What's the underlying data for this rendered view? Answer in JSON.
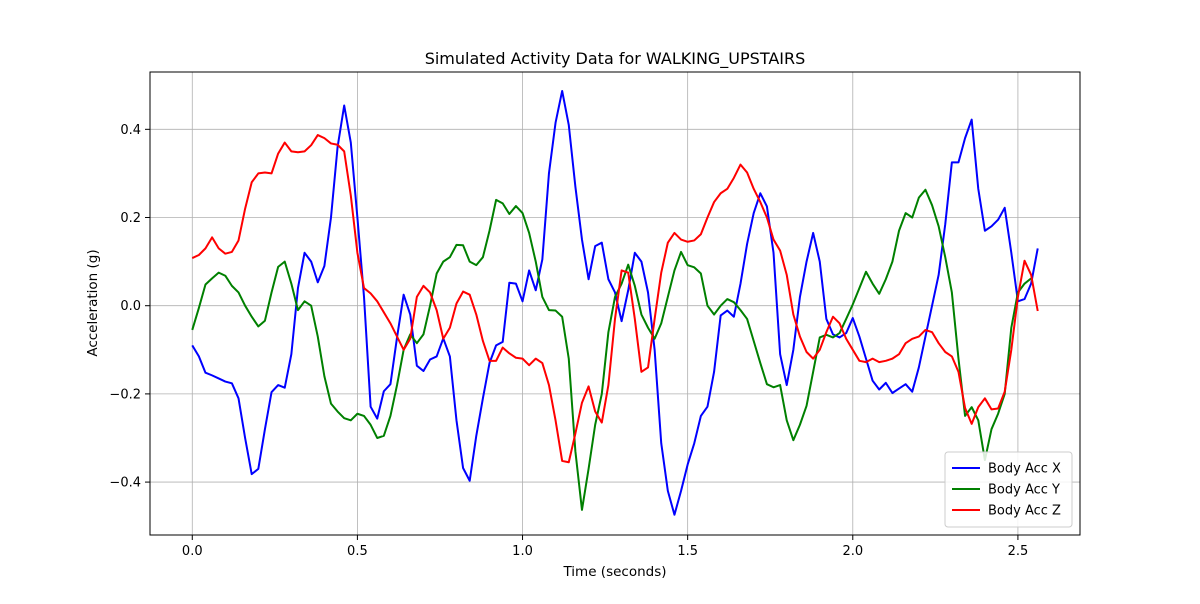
{
  "chart_data": {
    "type": "line",
    "title": "Simulated Activity Data for WALKING_UPSTAIRS",
    "xlabel": "Time (seconds)",
    "ylabel": "Acceleration (g)",
    "xlim": [
      -0.128,
      2.688
    ],
    "ylim": [
      -0.52,
      0.53
    ],
    "x_ticks": [
      0.0,
      0.5,
      1.0,
      1.5,
      2.0,
      2.5
    ],
    "x_tick_labels": [
      "0.0",
      "0.5",
      "1.0",
      "1.5",
      "2.0",
      "2.5"
    ],
    "y_ticks": [
      -0.4,
      -0.2,
      0.0,
      0.2,
      0.4
    ],
    "y_tick_labels": [
      "−0.4",
      "−0.2",
      "0.0",
      "0.2",
      "0.4"
    ],
    "grid": true,
    "legend_position": "bottom-right",
    "x_start": 0.0,
    "x_step": 0.02,
    "series": [
      {
        "name": "Body Acc X",
        "color": "#0000ff",
        "values": [
          -0.09,
          -0.115,
          -0.152,
          -0.158,
          -0.165,
          -0.172,
          -0.176,
          -0.21,
          -0.3,
          -0.382,
          -0.37,
          -0.28,
          -0.196,
          -0.18,
          -0.186,
          -0.11,
          0.04,
          0.12,
          0.1,
          0.053,
          0.09,
          0.2,
          0.36,
          0.454,
          0.37,
          0.2,
          0.02,
          -0.229,
          -0.256,
          -0.194,
          -0.178,
          -0.072,
          0.025,
          -0.02,
          -0.136,
          -0.148,
          -0.122,
          -0.115,
          -0.074,
          -0.115,
          -0.26,
          -0.368,
          -0.397,
          -0.295,
          -0.21,
          -0.13,
          -0.09,
          -0.082,
          0.052,
          0.05,
          0.01,
          0.08,
          0.035,
          0.105,
          0.3,
          0.415,
          0.487,
          0.41,
          0.27,
          0.15,
          0.06,
          0.135,
          0.143,
          0.06,
          0.03,
          -0.035,
          0.035,
          0.12,
          0.1,
          0.03,
          -0.1,
          -0.312,
          -0.42,
          -0.474,
          -0.42,
          -0.36,
          -0.312,
          -0.25,
          -0.229,
          -0.15,
          -0.022,
          -0.011,
          -0.025,
          0.05,
          0.14,
          0.21,
          0.255,
          0.225,
          0.12,
          -0.11,
          -0.18,
          -0.1,
          0.02,
          0.1,
          0.165,
          0.1,
          -0.03,
          -0.065,
          -0.072,
          -0.062,
          -0.028,
          -0.07,
          -0.12,
          -0.17,
          -0.19,
          -0.175,
          -0.198,
          -0.188,
          -0.178,
          -0.195,
          -0.14,
          -0.07,
          0,
          0.07,
          0.185,
          0.325,
          0.325,
          0.38,
          0.422,
          0.265,
          0.17,
          0.18,
          0.195,
          0.222,
          0.12,
          0.01,
          0.015,
          0.05,
          0.13
        ]
      },
      {
        "name": "Body Acc Y",
        "color": "#008000",
        "values": [
          -0.055,
          -0.005,
          0.048,
          0.062,
          0.075,
          0.068,
          0.045,
          0.03,
          0,
          -0.025,
          -0.047,
          -0.034,
          0.03,
          0.088,
          0.1,
          0.05,
          -0.01,
          0.01,
          0,
          -0.07,
          -0.16,
          -0.222,
          -0.24,
          -0.255,
          -0.26,
          -0.245,
          -0.25,
          -0.27,
          -0.3,
          -0.295,
          -0.25,
          -0.18,
          -0.1,
          -0.065,
          -0.085,
          -0.065,
          0,
          0.073,
          0.1,
          0.11,
          0.138,
          0.137,
          0.1,
          0.092,
          0.11,
          0.17,
          0.24,
          0.232,
          0.208,
          0.226,
          0.21,
          0.165,
          0.1,
          0.02,
          -0.01,
          -0.011,
          -0.025,
          -0.12,
          -0.33,
          -0.463,
          -0.37,
          -0.27,
          -0.2,
          -0.06,
          0.02,
          0.05,
          0.093,
          0.045,
          -0.02,
          -0.05,
          -0.075,
          -0.04,
          0.02,
          0.08,
          0.122,
          0.092,
          0.087,
          0.073,
          0,
          -0.02,
          0,
          0.015,
          0.008,
          -0.01,
          -0.03,
          -0.08,
          -0.13,
          -0.178,
          -0.185,
          -0.18,
          -0.26,
          -0.305,
          -0.27,
          -0.227,
          -0.15,
          -0.072,
          -0.066,
          -0.072,
          -0.062,
          -0.03,
          0.003,
          0.04,
          0.077,
          0.05,
          0.027,
          0.06,
          0.1,
          0.17,
          0.21,
          0.2,
          0.245,
          0.263,
          0.228,
          0.18,
          0.11,
          0.03,
          -0.12,
          -0.25,
          -0.23,
          -0.26,
          -0.35,
          -0.28,
          -0.245,
          -0.2,
          -0.05,
          0.03,
          0.05,
          0.062
        ]
      },
      {
        "name": "Body Acc Z",
        "color": "#ff0000",
        "values": [
          0.108,
          0.115,
          0.13,
          0.155,
          0.13,
          0.118,
          0.122,
          0.148,
          0.22,
          0.28,
          0.3,
          0.302,
          0.3,
          0.345,
          0.37,
          0.35,
          0.348,
          0.35,
          0.364,
          0.387,
          0.38,
          0.368,
          0.365,
          0.35,
          0.25,
          0.12,
          0.04,
          0.028,
          0.01,
          -0.015,
          -0.04,
          -0.07,
          -0.1,
          -0.075,
          0.02,
          0.045,
          0.03,
          -0.01,
          -0.075,
          -0.05,
          0.005,
          0.032,
          0.025,
          -0.02,
          -0.08,
          -0.125,
          -0.125,
          -0.095,
          -0.108,
          -0.118,
          -0.12,
          -0.135,
          -0.12,
          -0.13,
          -0.18,
          -0.26,
          -0.352,
          -0.355,
          -0.29,
          -0.22,
          -0.183,
          -0.24,
          -0.265,
          -0.18,
          -0.03,
          0.08,
          0.075,
          -0.03,
          -0.15,
          -0.14,
          -0.03,
          0.075,
          0.143,
          0.165,
          0.15,
          0.145,
          0.148,
          0.162,
          0.2,
          0.235,
          0.255,
          0.265,
          0.29,
          0.32,
          0.302,
          0.265,
          0.235,
          0.2,
          0.15,
          0.125,
          0.07,
          -0.02,
          -0.07,
          -0.105,
          -0.12,
          -0.1,
          -0.06,
          -0.025,
          -0.04,
          -0.075,
          -0.1,
          -0.125,
          -0.128,
          -0.12,
          -0.128,
          -0.125,
          -0.12,
          -0.11,
          -0.085,
          -0.075,
          -0.07,
          -0.055,
          -0.06,
          -0.085,
          -0.105,
          -0.115,
          -0.15,
          -0.232,
          -0.268,
          -0.23,
          -0.21,
          -0.235,
          -0.233,
          -0.195,
          -0.1,
          0.02,
          0.102,
          0.07,
          -0.012
        ]
      }
    ]
  }
}
